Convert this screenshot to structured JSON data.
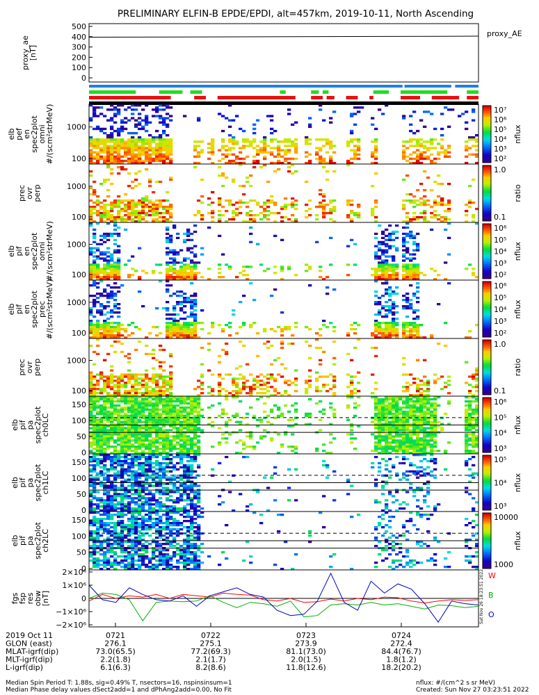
{
  "title": "PRELIMINARY ELFIN-B EPDE/EPDI, alt=457km, 2019-10-11, North Ascending",
  "chart_data": [
    {
      "type": "line",
      "panel": "proxy_ae",
      "ylabel_lines": [
        "proxy_ae",
        "[nT]"
      ],
      "legend": "proxy_AE",
      "yticks": [
        "500",
        "400",
        "300",
        "200",
        "100",
        "0"
      ],
      "ylim": [
        0,
        500
      ],
      "x": [
        0,
        1
      ],
      "values": [
        395,
        405
      ]
    },
    {
      "type": "heatmap",
      "panel": "perp-omni",
      "ylabel_lines": [
        "elb",
        "pef",
        "en",
        "spec2plot",
        "omni",
        "#/(scm²strMeV)"
      ],
      "yticks": [
        "1000",
        "100"
      ],
      "colorbar_ticks": [
        "10⁷",
        "10⁶",
        "10⁵",
        "10⁴",
        "10³",
        "10²"
      ],
      "colorbar_label": "nflux"
    },
    {
      "type": "heatmap",
      "panel": "prec-ovr-perp-e",
      "ylabel_lines": [
        "prec",
        "ovr",
        "perp"
      ],
      "yticks": [
        "1000",
        "100"
      ],
      "colorbar_ticks": [
        "1.0",
        "0.1"
      ],
      "colorbar_label": "ratio"
    },
    {
      "type": "heatmap",
      "panel": "pif-omni",
      "ylabel_lines": [
        "elb",
        "pif",
        "en",
        "spec2plot",
        "omni",
        "#/(scm²strMeV)"
      ],
      "yticks": [
        "1000",
        "100"
      ],
      "colorbar_ticks": [
        "10⁶",
        "10⁵",
        "10⁴",
        "10³",
        "10²"
      ],
      "colorbar_label": "nflux"
    },
    {
      "type": "heatmap",
      "panel": "pif-prec",
      "ylabel_lines": [
        "elb",
        "pif",
        "en",
        "spec2plot",
        "prec",
        "#/(scm²strMeV)"
      ],
      "yticks": [
        "1000",
        "100"
      ],
      "colorbar_ticks": [
        "10⁶",
        "10⁵",
        "10⁴",
        "10³",
        "10²"
      ],
      "colorbar_label": "nflux"
    },
    {
      "type": "heatmap",
      "panel": "prec-ovr-perp-i",
      "ylabel_lines": [
        "prec",
        "ovr",
        "perp"
      ],
      "yticks": [
        "1000",
        "100"
      ],
      "colorbar_ticks": [
        "1.0",
        "0.1"
      ],
      "colorbar_label": "ratio"
    },
    {
      "type": "heatmap",
      "panel": "pa-ch0LC",
      "ylabel_lines": [
        "elb",
        "pif",
        "pa",
        "spec2plot",
        "ch0LC"
      ],
      "yticks": [
        "150",
        "100",
        "50",
        "0"
      ],
      "ylim": [
        0,
        180
      ],
      "colorbar_ticks": [
        "10⁶",
        "10⁵",
        "10⁴",
        "10³"
      ],
      "colorbar_label": "nflux"
    },
    {
      "type": "heatmap",
      "panel": "pa-ch1LC",
      "ylabel_lines": [
        "elb",
        "pif",
        "pa",
        "spec2plot",
        "ch1LC"
      ],
      "yticks": [
        "150",
        "100",
        "50",
        "0"
      ],
      "ylim": [
        0,
        180
      ],
      "colorbar_ticks": [
        "10⁵",
        "10⁴",
        "10³"
      ],
      "colorbar_label": "nflux"
    },
    {
      "type": "heatmap",
      "panel": "pa-ch2LC",
      "ylabel_lines": [
        "elb",
        "pif",
        "pa",
        "spec2plot",
        "ch2LC"
      ],
      "yticks": [
        "150",
        "100",
        "50",
        "0"
      ],
      "ylim": [
        0,
        180
      ],
      "colorbar_ticks": [
        "10000",
        "1000"
      ],
      "colorbar_label": "nflux"
    },
    {
      "type": "line",
      "panel": "fgs-res",
      "ylabel_lines": [
        "fgs",
        "fsp",
        "res",
        "obw",
        "[nT]"
      ],
      "yticks": [
        "2×10⁶",
        "1×10⁶",
        "0",
        "−1×10⁶",
        "−2×10⁶"
      ],
      "ylim": [
        -2000000,
        2000000
      ],
      "series": [
        {
          "name": "W",
          "color": "#ff0000",
          "values": [
            -200000,
            300000,
            0,
            200000,
            100000,
            300000,
            0,
            300000,
            200000,
            100000,
            400000,
            300000,
            250000,
            -100000,
            -200000,
            0,
            -300000,
            -250000,
            -50000,
            -200000,
            0,
            -100000,
            100000,
            50000,
            -200000,
            -350000,
            -200000,
            -100000,
            -150000,
            -100000
          ]
        },
        {
          "name": "B",
          "color": "#00b000",
          "values": [
            0,
            400000,
            300000,
            -100000,
            -1700000,
            -300000,
            -200000,
            -250000,
            -200000,
            200000,
            -300000,
            -700000,
            -300000,
            -400000,
            -600000,
            -200000,
            -1400000,
            -1300000,
            -500000,
            -400000,
            -500000,
            -300000,
            -500000,
            -400000,
            -600000,
            -800000,
            -500000,
            -550000,
            -700000,
            -600000
          ]
        },
        {
          "name": "O",
          "color": "#0000c0",
          "values": [
            1000000,
            -100000,
            -300000,
            800000,
            300000,
            -100000,
            -200000,
            200000,
            -600000,
            200000,
            500000,
            800000,
            300000,
            100000,
            -900000,
            -1300000,
            -1200000,
            -200000,
            1900000,
            -300000,
            -900000,
            1300000,
            400000,
            1100000,
            700000,
            -400000,
            -1800000,
            -200000,
            -400000,
            -500000
          ]
        }
      ]
    }
  ],
  "xaxis": {
    "rows": [
      {
        "label": "2019 Oct 11",
        "values": [
          "0721",
          "0722",
          "0723",
          "0724"
        ]
      },
      {
        "label": "GLON (east)",
        "values": [
          "276.1",
          "275.1",
          "273.9",
          "272.4"
        ]
      },
      {
        "label": "MLAT-igrf(dip)",
        "values": [
          "73.0(65.5)",
          "77.2(69.3)",
          "81.1(73.0)",
          "84.4(76.7)"
        ]
      },
      {
        "label": "MLT-igrf(dip)",
        "values": [
          "2.2(1.8)",
          "2.1(1.7)",
          "2.0(1.5)",
          "1.8(1.2)"
        ]
      },
      {
        "label": "L-igrf(dip)",
        "values": [
          "6.1(6.3)",
          "8.2(8.6)",
          "11.8(12.6)",
          "18.2(20.2)"
        ]
      }
    ]
  },
  "side_stamp": "Sat Nov 26 18:23:51 2022",
  "footer": {
    "left_line1": "Median Spin Period T: 1.88s, sig=0.49% T, nsectors=16, nspinsinsum=1",
    "left_line2": "Median Phase delay values dSect2add=1 and dPhAng2add=0.00, No Fit",
    "right_line1": "nflux: #/(cm^2 s sr MeV)",
    "right_line2": "Created: Sun Nov 27 03:23:51 2022"
  },
  "colors": {
    "blue_bar": "#1e7fe6",
    "green_bar": "#22dd22",
    "red_bar": "#e81010",
    "black_bar": "#000000"
  }
}
